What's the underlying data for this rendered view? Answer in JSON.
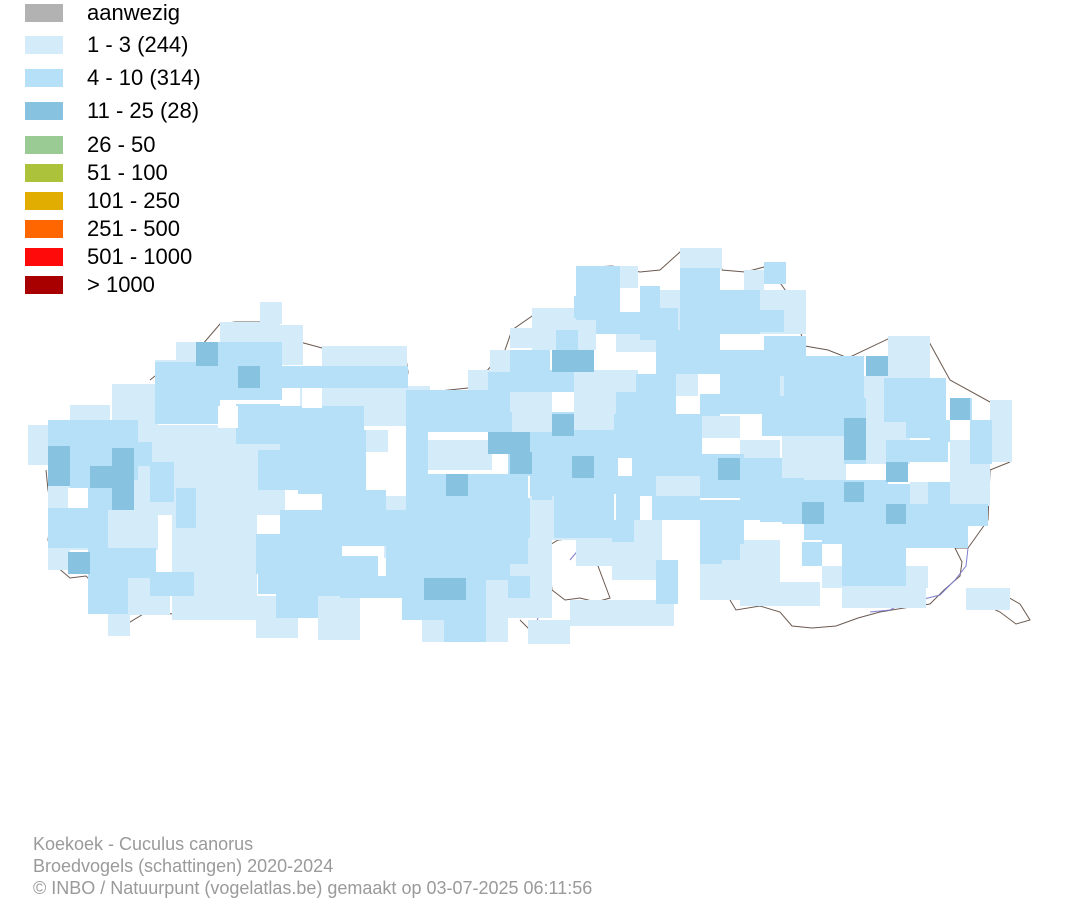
{
  "legend": [
    {
      "label": "aanwezig",
      "color": "#b2b2b2"
    },
    {
      "label": "1 - 3 (244)",
      "color": "#d4ebfa"
    },
    {
      "label": "4 - 10 (314)",
      "color": "#b5e0f7"
    },
    {
      "label": "11 - 25 (28)",
      "color": "#87c2e0"
    },
    {
      "label": "26 - 50",
      "color": "#9acb94"
    },
    {
      "label": "51 - 100",
      "color": "#adc23b"
    },
    {
      "label": "101 - 250",
      "color": "#e0ad00"
    },
    {
      "label": "251 - 500",
      "color": "#ff6600"
    },
    {
      "label": "501 - 1000",
      "color": "#ff0a0a"
    },
    {
      "label": "> 1000",
      "color": "#a80000"
    }
  ],
  "footer": {
    "species": "Koekoek - Cuculus canorus",
    "dataset": "Broedvogels (schattingen) 2020-2024",
    "credit": "© INBO / Natuurpunt (vogelatlas.be) gemaakt op 03-07-2025 06:11:56"
  },
  "colors": {
    "border": "#6b5a50",
    "river": "#7f7fd0"
  }
}
